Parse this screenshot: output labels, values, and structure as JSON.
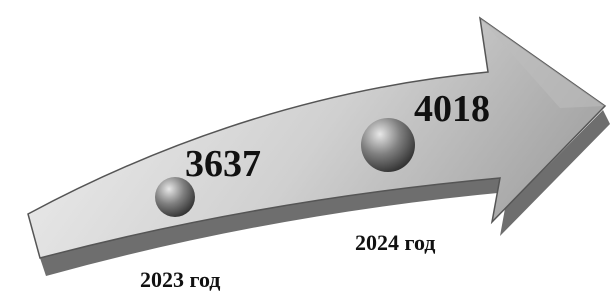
{
  "items": [
    {
      "value": 3637,
      "label": "2023 год"
    },
    {
      "value": 4018,
      "label": "2024 год"
    }
  ]
}
